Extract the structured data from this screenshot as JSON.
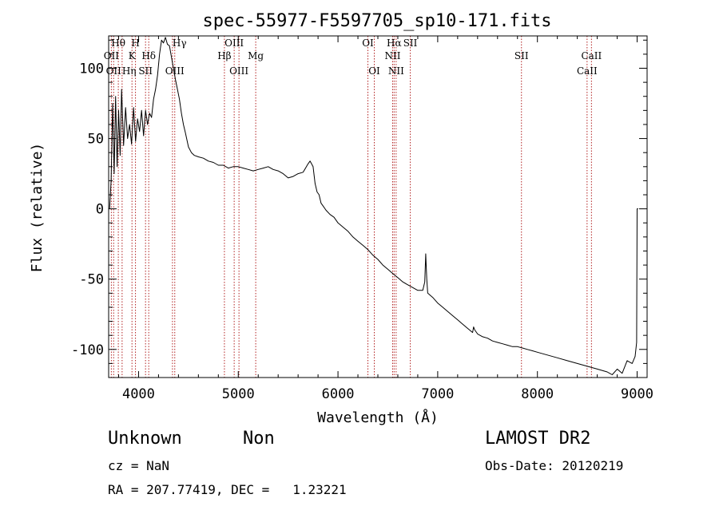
{
  "chart_data": {
    "type": "line",
    "title": "spec-55977-F5597705_sp10-171.fits",
    "xlabel": "Wavelength (Å)",
    "ylabel": "Flux (relative)",
    "xlim": [
      3700,
      9100
    ],
    "ylim": [
      -120,
      123
    ],
    "xticks": [
      4000,
      5000,
      6000,
      7000,
      8000,
      9000
    ],
    "yticks": [
      -100,
      -50,
      0,
      50,
      100
    ],
    "grid": false,
    "series": [
      {
        "color": "#000000",
        "x": [
          3710,
          3725,
          3740,
          3755,
          3770,
          3785,
          3800,
          3815,
          3830,
          3850,
          3870,
          3890,
          3910,
          3930,
          3950,
          3970,
          3990,
          4010,
          4030,
          4050,
          4070,
          4090,
          4110,
          4130,
          4150,
          4170,
          4190,
          4210,
          4230,
          4250,
          4270,
          4290,
          4310,
          4330,
          4350,
          4370,
          4390,
          4410,
          4430,
          4450,
          4470,
          4500,
          4530,
          4560,
          4600,
          4650,
          4700,
          4750,
          4800,
          4850,
          4900,
          4950,
          5000,
          5050,
          5100,
          5150,
          5200,
          5250,
          5300,
          5350,
          5400,
          5450,
          5500,
          5550,
          5600,
          5650,
          5700,
          5720,
          5750,
          5770,
          5790,
          5810,
          5830,
          5850,
          5880,
          5920,
          5960,
          6000,
          6050,
          6100,
          6150,
          6200,
          6250,
          6300,
          6350,
          6400,
          6450,
          6500,
          6550,
          6600,
          6650,
          6700,
          6750,
          6800,
          6850,
          6870,
          6880,
          6890,
          6900,
          6950,
          7000,
          7050,
          7100,
          7150,
          7200,
          7250,
          7300,
          7350,
          7360,
          7370,
          7400,
          7450,
          7500,
          7550,
          7600,
          7650,
          7700,
          7750,
          7800,
          7850,
          7900,
          7950,
          8000,
          8100,
          8200,
          8300,
          8400,
          8500,
          8600,
          8700,
          8750,
          8800,
          8850,
          8900,
          8950,
          8980,
          8995,
          9000,
          9010
        ],
        "values": [
          0,
          20,
          75,
          25,
          80,
          30,
          70,
          38,
          85,
          45,
          72,
          50,
          60,
          46,
          72,
          48,
          64,
          55,
          70,
          52,
          70,
          60,
          68,
          65,
          78,
          85,
          95,
          110,
          120,
          118,
          122,
          117,
          116,
          108,
          100,
          92,
          85,
          78,
          68,
          60,
          54,
          44,
          40,
          38,
          37,
          36,
          34,
          33,
          31,
          31,
          29,
          30,
          30,
          29,
          28,
          27,
          28,
          29,
          30,
          28,
          27,
          25,
          22,
          23,
          25,
          26,
          32,
          34,
          30,
          18,
          12,
          10,
          4,
          2,
          -1,
          -4,
          -6,
          -10,
          -13,
          -16,
          -20,
          -23,
          -26,
          -29,
          -33,
          -36,
          -40,
          -43,
          -46,
          -49,
          -52,
          -54,
          -56,
          -58,
          -58,
          -52,
          -32,
          -50,
          -60,
          -63,
          -67,
          -70,
          -73,
          -76,
          -79,
          -82,
          -85,
          -88,
          -84,
          -86,
          -89,
          -91,
          -92,
          -94,
          -95,
          -96,
          -97,
          -98,
          -98,
          -99,
          -100,
          -101,
          -102,
          -104,
          -106,
          -108,
          -110,
          -112,
          -114,
          -116,
          -118,
          -114,
          -117,
          -108,
          -110,
          -105,
          -95,
          0,
          0
        ]
      }
    ],
    "lines": [
      {
        "wl": 3727,
        "labels": [
          "OII"
        ],
        "lab_y": 74,
        "anchor": "middle"
      },
      {
        "wl": 3750,
        "labels": [
          "OII"
        ],
        "lab_y": 93,
        "anchor": "middle"
      },
      {
        "wl": 3797,
        "labels": [
          "Hθ"
        ],
        "lab_y": 58,
        "anchor": "middle"
      },
      {
        "wl": 3835,
        "labels": [
          "Hη"
        ],
        "lab_y": 93,
        "anchor": "start"
      },
      {
        "wl": 3934,
        "labels": [
          "K"
        ],
        "lab_y": 74,
        "anchor": "middle"
      },
      {
        "wl": 3969,
        "labels": [
          "H"
        ],
        "lab_y": 58,
        "anchor": "middle"
      },
      {
        "wl": 4070,
        "labels": [
          "SII"
        ],
        "lab_y": 93,
        "anchor": "middle"
      },
      {
        "wl": 4102,
        "labels": [
          "Hδ"
        ],
        "lab_y": 74,
        "anchor": "middle"
      },
      {
        "wl": 4340,
        "labels": [
          "Hγ"
        ],
        "lab_y": 58,
        "anchor": "start"
      },
      {
        "wl": 4363,
        "labels": [
          "OIII"
        ],
        "lab_y": 93,
        "anchor": "middle"
      },
      {
        "wl": 4861,
        "labels": [
          "Hβ"
        ],
        "lab_y": 74,
        "anchor": "middle"
      },
      {
        "wl": 4959,
        "labels": [
          "OIII"
        ],
        "lab_y": 58,
        "anchor": "middle"
      },
      {
        "wl": 5007,
        "labels": [
          "OIII"
        ],
        "lab_y": 93,
        "anchor": "middle"
      },
      {
        "wl": 5175,
        "labels": [
          "Mg"
        ],
        "lab_y": 74,
        "anchor": "middle"
      },
      {
        "wl": 6300,
        "labels": [
          "OI"
        ],
        "lab_y": 58,
        "anchor": "middle"
      },
      {
        "wl": 6364,
        "labels": [
          "OI"
        ],
        "lab_y": 93,
        "anchor": "middle"
      },
      {
        "wl": 6548,
        "labels": [
          "NII"
        ],
        "lab_y": 74,
        "anchor": "middle"
      },
      {
        "wl": 6563,
        "labels": [
          "Hα"
        ],
        "lab_y": 58,
        "anchor": "middle"
      },
      {
        "wl": 6583,
        "labels": [
          "NII"
        ],
        "lab_y": 93,
        "anchor": "middle"
      },
      {
        "wl": 6725,
        "labels": [
          "SII"
        ],
        "lab_y": 58,
        "anchor": "middle"
      },
      {
        "wl": 7840,
        "labels": [
          "SII"
        ],
        "lab_y": 74,
        "anchor": "middle"
      },
      {
        "wl": 8498,
        "labels": [
          "CaII"
        ],
        "lab_y": 93,
        "anchor": "middle"
      },
      {
        "wl": 8542,
        "labels": [
          "CaII"
        ],
        "lab_y": 74,
        "anchor": "middle"
      }
    ]
  },
  "info": {
    "class": "Unknown",
    "subclass": "Non",
    "survey": "LAMOST DR2",
    "cz": "cz = NaN",
    "obs_date": "Obs-Date: 20120219",
    "radec": "RA = 207.77419, DEC =   1.23221"
  }
}
